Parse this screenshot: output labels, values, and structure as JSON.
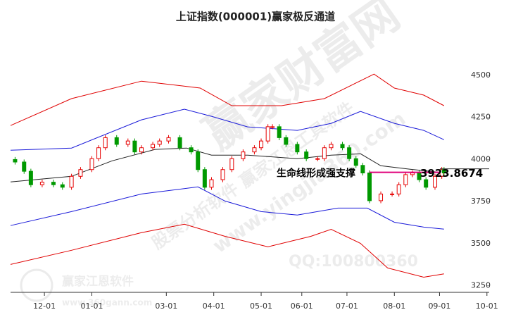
{
  "chart_data": {
    "type": "candlestick",
    "title": "上证指数(000001)赢家极反通道",
    "xlim": [
      0,
      212
    ],
    "xticks": [
      {
        "value": 15,
        "label": "12-01"
      },
      {
        "value": 36,
        "label": "01-01"
      },
      {
        "value": 69,
        "label": "03-01"
      },
      {
        "value": 90,
        "label": "04-01"
      },
      {
        "value": 111,
        "label": "05-01"
      },
      {
        "value": 129,
        "label": "06-01"
      },
      {
        "value": 149,
        "label": "07-01"
      },
      {
        "value": 170,
        "label": "08-01"
      },
      {
        "value": 190,
        "label": "09-01"
      },
      {
        "value": 211,
        "label": "10-01"
      }
    ],
    "ylim": [
      3210,
      4760
    ],
    "yticks": [
      3250,
      3500,
      3750,
      4000,
      4250,
      4500
    ],
    "up_color": "#e60000",
    "down_color": "#009900",
    "candles": {
      "x": [
        2,
        6,
        9,
        14,
        19,
        23,
        27,
        31,
        36,
        39,
        42,
        47,
        52,
        55,
        58,
        63,
        66,
        70,
        75,
        80,
        83,
        86,
        89,
        94,
        98,
        103,
        108,
        111,
        114,
        116,
        119,
        122,
        127,
        131,
        136,
        139,
        142,
        147,
        150,
        153,
        156,
        159,
        164,
        169,
        172,
        175,
        178,
        181,
        184,
        188,
        191,
        192
      ],
      "open": [
        4000,
        3985,
        3930,
        3850,
        3865,
        3850,
        3835,
        3900,
        3940,
        4005,
        4070,
        4130,
        4090,
        4110,
        4045,
        4070,
        4090,
        4110,
        4130,
        4070,
        4045,
        3940,
        3835,
        3880,
        3940,
        4005,
        4045,
        4070,
        4110,
        4195,
        4195,
        4130,
        4090,
        4045,
        4005,
        4005,
        4070,
        4090,
        4070,
        4005,
        3965,
        3920,
        3755,
        3795,
        3795,
        3850,
        3910,
        3920,
        3880,
        3835,
        3900,
        3940
      ],
      "high": [
        4015,
        4000,
        3945,
        3880,
        3880,
        3865,
        3915,
        3955,
        4020,
        4085,
        4145,
        4145,
        4125,
        4125,
        4085,
        4105,
        4125,
        4145,
        4145,
        4085,
        4060,
        3955,
        3895,
        3955,
        4020,
        4060,
        4085,
        4125,
        4210,
        4210,
        4210,
        4145,
        4105,
        4060,
        4020,
        4085,
        4105,
        4105,
        4085,
        4020,
        3980,
        3935,
        3810,
        3810,
        3865,
        3925,
        3935,
        3935,
        3895,
        3915,
        3955,
        3955
      ],
      "low": [
        3970,
        3915,
        3835,
        3835,
        3835,
        3820,
        3820,
        3885,
        3925,
        3990,
        4055,
        4075,
        4075,
        4030,
        4030,
        4055,
        4075,
        4095,
        4055,
        4030,
        3925,
        3820,
        3820,
        3865,
        3925,
        3990,
        4030,
        4055,
        4095,
        4180,
        4115,
        4075,
        4030,
        3990,
        3990,
        3990,
        4055,
        4055,
        3990,
        3950,
        3905,
        3740,
        3740,
        3780,
        3780,
        3835,
        3895,
        3865,
        3820,
        3820,
        3885,
        3905
      ],
      "close": [
        3985,
        3930,
        3850,
        3865,
        3850,
        3835,
        3900,
        3940,
        4005,
        4070,
        4130,
        4090,
        4110,
        4045,
        4070,
        4090,
        4110,
        4130,
        4070,
        4045,
        3940,
        3835,
        3880,
        3940,
        4005,
        4045,
        4070,
        4110,
        4195,
        4195,
        4130,
        4090,
        4045,
        4005,
        4005,
        4070,
        4090,
        4070,
        4005,
        3965,
        3920,
        3755,
        3795,
        3795,
        3850,
        3910,
        3920,
        3880,
        3835,
        3900,
        3940,
        3920
      ]
    },
    "bands": [
      {
        "color": "#e00000",
        "x": [
          0,
          27,
          58,
          84,
          98,
          120,
          139,
          161,
          170,
          183,
          192
        ],
        "values": [
          4202,
          4362,
          4466,
          4425,
          4320,
          4320,
          4362,
          4508,
          4425,
          4383,
          4320
        ]
      },
      {
        "color": "#1a1ad9",
        "x": [
          0,
          27,
          58,
          77,
          89,
          105,
          127,
          142,
          155,
          170,
          183,
          192
        ],
        "values": [
          4055,
          4068,
          4236,
          4299,
          4257,
          4194,
          4173,
          4215,
          4286,
          4215,
          4173,
          4118
        ]
      },
      {
        "color": "#222222",
        "x": [
          0,
          27,
          45,
          64,
          78,
          89,
          105,
          127,
          142,
          155,
          164,
          177,
          192
        ],
        "values": [
          3867,
          3900,
          3992,
          4060,
          4068,
          4026,
          4026,
          4005,
          4026,
          4034,
          3963,
          3942,
          3921
        ]
      },
      {
        "color": "#1a1ad9",
        "x": [
          0,
          27,
          58,
          83,
          95,
          111,
          127,
          145,
          158,
          170,
          183,
          192
        ],
        "values": [
          3607,
          3690,
          3795,
          3837,
          3753,
          3690,
          3670,
          3711,
          3711,
          3627,
          3598,
          3586
        ]
      },
      {
        "color": "#e00000",
        "x": [
          0,
          27,
          58,
          77,
          95,
          114,
          133,
          142,
          155,
          167,
          183,
          192
        ],
        "values": [
          3376,
          3460,
          3565,
          3615,
          3543,
          3481,
          3543,
          3585,
          3501,
          3355,
          3300,
          3320
        ]
      }
    ],
    "annotation": {
      "text": "生命线形成强支撑",
      "level": 3923.8674,
      "color": "#e0007a"
    },
    "watermarks": [
      "赢家财富网",
      "股票分析软件 赢家江恩工具软件",
      "www.yingjia360.com",
      "QQ:100800360",
      "赢家江恩软件",
      "www.360gann.com"
    ]
  }
}
